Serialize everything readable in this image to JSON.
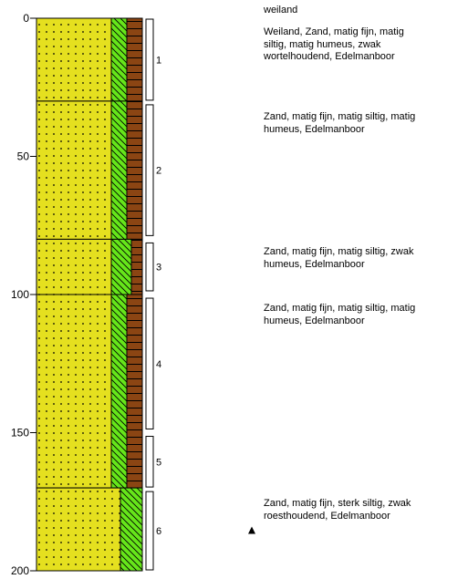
{
  "header_label": "weiland",
  "depth_axis": {
    "min": 0,
    "max": 200,
    "ticks": [
      0,
      50,
      100,
      150,
      200
    ]
  },
  "colors": {
    "sand": "#e5e01f",
    "silt": "#66e61a",
    "humus": "#8b4513",
    "outline": "#000000"
  },
  "layers": [
    {
      "top": 0,
      "bottom": 30,
      "silt_width": "matig",
      "humus_width": "matig"
    },
    {
      "top": 30,
      "bottom": 80,
      "silt_width": "matig",
      "humus_width": "matig"
    },
    {
      "top": 80,
      "bottom": 100,
      "silt_width": "matig",
      "humus_width": "zwak"
    },
    {
      "top": 100,
      "bottom": 170,
      "silt_width": "matig",
      "humus_width": "matig"
    },
    {
      "top": 170,
      "bottom": 200,
      "silt_width": "sterk",
      "humus_width": "none"
    }
  ],
  "samples": [
    {
      "label": "1",
      "top": 0,
      "bottom": 30
    },
    {
      "label": "2",
      "top": 31,
      "bottom": 79
    },
    {
      "label": "3",
      "top": 81,
      "bottom": 99
    },
    {
      "label": "4",
      "top": 101,
      "bottom": 149
    },
    {
      "label": "5",
      "top": 151,
      "bottom": 170
    },
    {
      "label": "6",
      "top": 171,
      "bottom": 200
    }
  ],
  "descriptions": [
    {
      "depth": 0,
      "text": "Weiland, Zand, matig fijn, matig\nsiltig, matig humeus, zwak\nwortelhoudend,  Edelmanboor"
    },
    {
      "depth": 30,
      "text": "Zand, matig fijn, matig siltig, matig\nhumeus,  Edelmanboor"
    },
    {
      "depth": 80,
      "text": "Zand, matig fijn, matig siltig, zwak\nhumeus,  Edelmanboor"
    },
    {
      "depth": 100,
      "text": "Zand, matig fijn, matig siltig, matig\nhumeus,  Edelmanboor"
    },
    {
      "depth": 170,
      "text": "Zand, matig fijn, sterk siltig, zwak\nroesthoudend,  Edelmanboor"
    }
  ],
  "groundwater_marker": {
    "depth": 185,
    "symbol": "triangle-marker"
  }
}
